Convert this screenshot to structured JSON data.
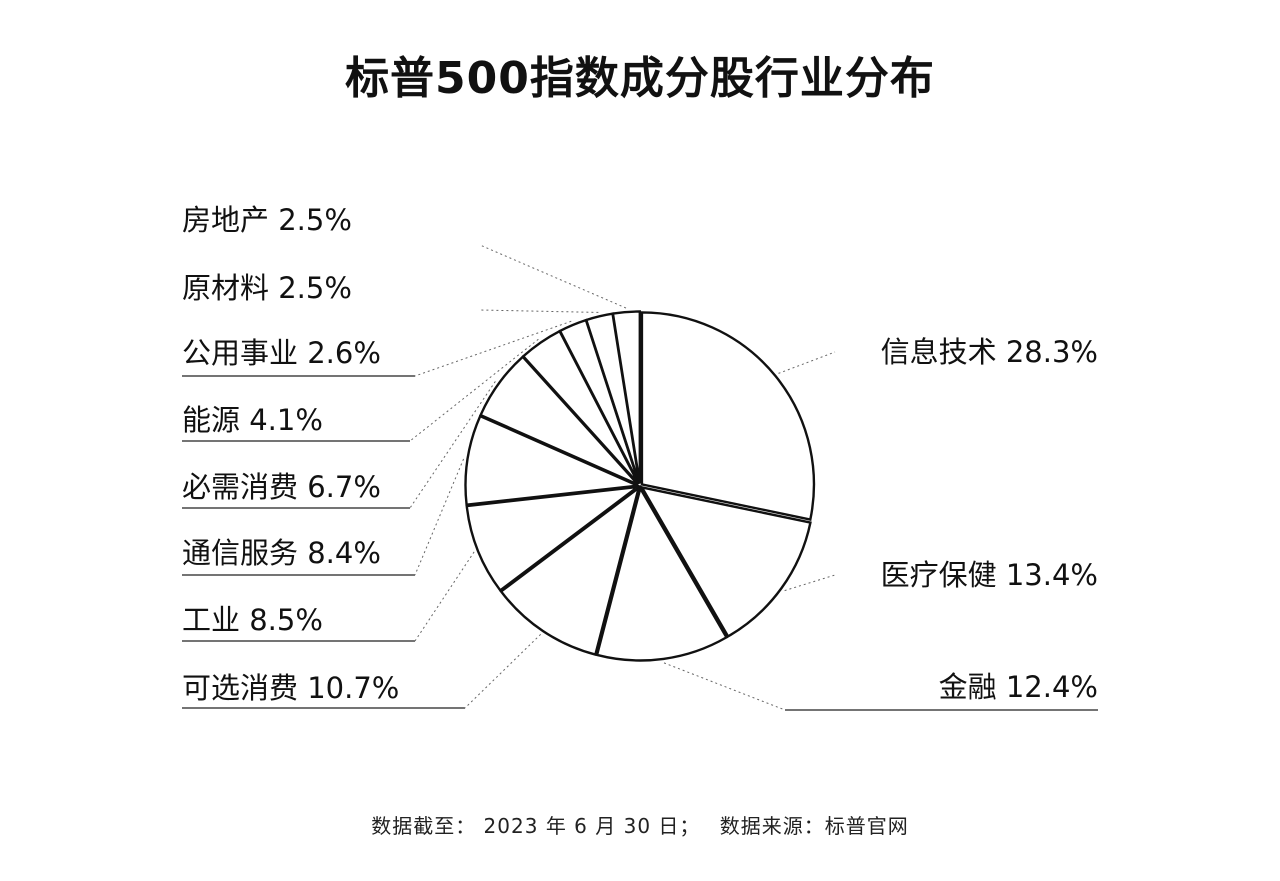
{
  "title": "标普500指数成分股行业分布",
  "chart_data": {
    "type": "pie",
    "title": "标普500指数成分股行业分布",
    "start_angle_deg": 0,
    "direction": "clockwise",
    "slices": [
      {
        "name": "信息技术",
        "value": 28.3,
        "value_label": "28.3%"
      },
      {
        "name": "医疗保健",
        "value": 13.4,
        "value_label": "13.4%"
      },
      {
        "name": "金融",
        "value": 12.4,
        "value_label": "12.4%"
      },
      {
        "name": "可选消费",
        "value": 10.7,
        "value_label": "10.7%"
      },
      {
        "name": "工业",
        "value": 8.5,
        "value_label": "8.5%"
      },
      {
        "name": "通信服务",
        "value": 8.4,
        "value_label": "8.4%"
      },
      {
        "name": "必需消费",
        "value": 6.7,
        "value_label": "6.7%"
      },
      {
        "name": "能源",
        "value": 4.1,
        "value_label": "4.1%"
      },
      {
        "name": "公用事业",
        "value": 2.6,
        "value_label": "2.6%"
      },
      {
        "name": "原材料",
        "value": 2.5,
        "value_label": "2.5%"
      },
      {
        "name": "房地产",
        "value": 2.5,
        "value_label": "2.5%"
      }
    ],
    "colors": {
      "fill": "#ffffff",
      "stroke": "#111111",
      "leader": "#666666"
    }
  },
  "footnote": {
    "date_text": "数据截至： 2023 年 6 月 30 日；",
    "source_text": "数据来源：标普官网"
  }
}
